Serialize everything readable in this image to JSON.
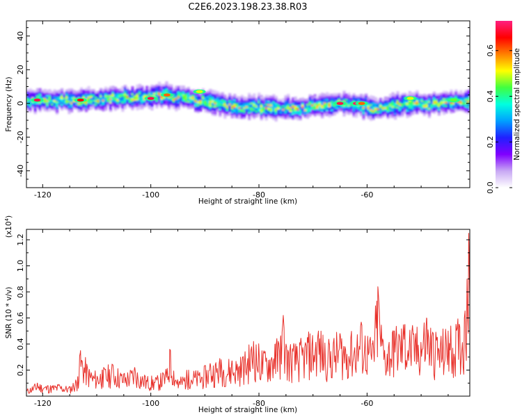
{
  "title": "C2E6.2023.198.23.38.R03",
  "chart_data": [
    {
      "type": "heatmap",
      "xlabel": "Height of straight line (km)",
      "ylabel": "Frequency (Hz)",
      "xlim": [
        -123,
        -41
      ],
      "ylim": [
        -50,
        49
      ],
      "xticks": [
        -120,
        -100,
        -80,
        -60
      ],
      "yticks": [
        -40,
        -20,
        0,
        20,
        40
      ],
      "x_tick_labels": [
        "-120",
        "-100",
        "-80",
        "-60"
      ],
      "y_tick_labels": [
        "-40",
        "-20",
        "0",
        "20",
        "40"
      ],
      "colorbar": {
        "label": "Normalized spectral amplitude",
        "range": [
          0,
          0.73
        ],
        "ticks": [
          0.0,
          0.2,
          0.4,
          0.6
        ],
        "tick_labels": [
          "0.0",
          "0.2",
          "0.4",
          "0.6"
        ],
        "colors": [
          "#ffffff",
          "#c8a8f4",
          "#8000ff",
          "#2020ff",
          "#00a0ff",
          "#00ffe0",
          "#40ff40",
          "#ffff00",
          "#ff8000",
          "#ff0000",
          "#ff2080"
        ]
      },
      "ridge": {
        "x": [
          -123,
          -118,
          -113,
          -108,
          -103,
          -98,
          -93,
          -88,
          -83,
          -78,
          -73,
          -68,
          -63,
          -58,
          -53,
          -48,
          -43,
          -41
        ],
        "center_hz": [
          2,
          2,
          2,
          3,
          4,
          5,
          3,
          0,
          -2,
          -2,
          -3,
          0,
          0,
          -3,
          0,
          0,
          1,
          2
        ]
      },
      "hotspots": [
        {
          "x": -121,
          "y": 2,
          "v": 0.7
        },
        {
          "x": -113,
          "y": 2,
          "v": 0.65
        },
        {
          "x": -100,
          "y": 3,
          "v": 0.7
        },
        {
          "x": -97,
          "y": 5,
          "v": 0.6
        },
        {
          "x": -91,
          "y": 7,
          "v": 0.5
        },
        {
          "x": -65,
          "y": 0,
          "v": 0.7
        },
        {
          "x": -62,
          "y": 0,
          "v": 0.72
        },
        {
          "x": -61,
          "y": 0,
          "v": 0.6
        },
        {
          "x": -52,
          "y": 3,
          "v": 0.5
        },
        {
          "x": -44,
          "y": 2,
          "v": 0.45
        }
      ]
    },
    {
      "type": "line",
      "xlabel": "Height of straight line (km)",
      "ylabel": "SNR (10 * v/v)",
      "y_multiplier_label": "(x10",
      "y_multiplier_exp": "4",
      "xlim": [
        -123,
        -41
      ],
      "ylim": [
        0,
        1.28
      ],
      "xticks": [
        -120,
        -100,
        -80,
        -60
      ],
      "yticks": [
        0.2,
        0.4,
        0.6,
        0.8,
        1.0,
        1.2
      ],
      "x_tick_labels": [
        "-120",
        "-100",
        "-80",
        "-60"
      ],
      "y_tick_labels": [
        "0.2",
        "0.4",
        "0.6",
        "0.8",
        "1.0",
        "1.2"
      ],
      "color": "#e8302a",
      "series": [
        {
          "x": [
            -123,
            -121,
            -119,
            -117,
            -115,
            -113.5,
            -113,
            -111,
            -109,
            -107,
            -105,
            -103,
            -101,
            -99,
            -97,
            -96.5,
            -95,
            -93,
            -91,
            -89,
            -87,
            -85,
            -83,
            -81,
            -79,
            -77,
            -76,
            -75.5,
            -75,
            -73,
            -71,
            -69,
            -67,
            -65,
            -63,
            -61,
            -59,
            -58,
            -57,
            -55,
            -53,
            -51,
            -49,
            -47,
            -45,
            -43,
            -42,
            -41.5,
            -41.2,
            -41
          ],
          "y": [
            0.05,
            0.1,
            0.08,
            0.09,
            0.07,
            0.15,
            0.35,
            0.18,
            0.2,
            0.24,
            0.17,
            0.22,
            0.15,
            0.14,
            0.2,
            0.36,
            0.12,
            0.2,
            0.18,
            0.25,
            0.28,
            0.27,
            0.3,
            0.42,
            0.33,
            0.4,
            0.45,
            0.62,
            0.4,
            0.38,
            0.45,
            0.5,
            0.4,
            0.48,
            0.45,
            0.55,
            0.4,
            0.84,
            0.42,
            0.5,
            0.55,
            0.48,
            0.6,
            0.45,
            0.5,
            0.55,
            0.6,
            0.9,
            1.25,
            0.75
          ]
        }
      ]
    }
  ]
}
